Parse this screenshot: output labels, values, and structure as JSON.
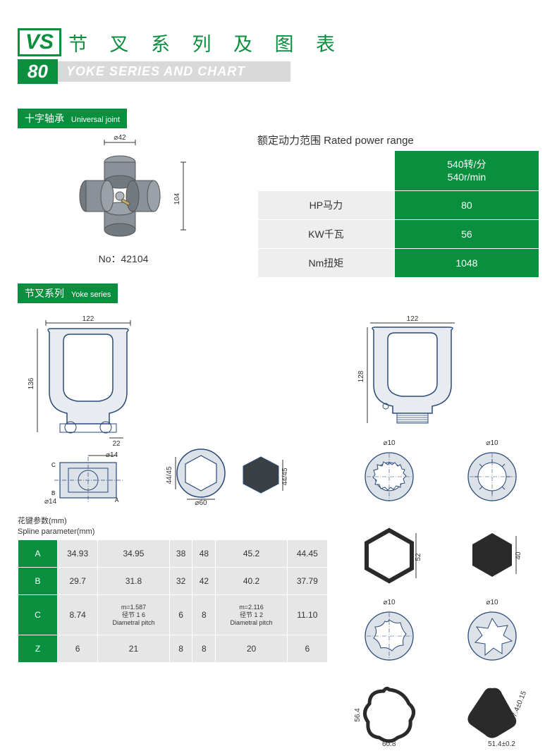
{
  "header": {
    "vs_text": "VS",
    "num_text": "80",
    "title_cn": "节 叉 系 列 及 图 表",
    "subtitle_en": "YOKE SERIES AND CHART"
  },
  "section1": {
    "label_cn": "十字轴承",
    "label_en": "Universal joint",
    "diagram": {
      "diam": "⌀42",
      "height": "104",
      "no": "No：42104"
    },
    "power_title": "额定动力范围  Rated power range",
    "power_header": "540转/分\n540r/min",
    "rows": [
      {
        "label": "HP马力",
        "value": "80"
      },
      {
        "label": "KW千瓦",
        "value": "56"
      },
      {
        "label": "Nm扭矩",
        "value": "1048"
      }
    ]
  },
  "section2": {
    "label_cn": "节叉系列",
    "label_en": "Yoke series",
    "left_yoke": {
      "w": "122",
      "h": "136",
      "base_w": "22",
      "shaft_d": "⌀14",
      "body_d": "⌀14"
    },
    "hex_profile": {
      "outer": "⌀60",
      "flat": "44/45"
    },
    "right_yoke": {
      "w": "122",
      "h": "128"
    },
    "spline_caption_cn": "花键参数(mm)",
    "spline_caption_en": "Spline parameter(mm)",
    "spline_table": {
      "row_labels": [
        "A",
        "B",
        "C",
        "Z"
      ],
      "rows": [
        [
          "34.93",
          "34.95",
          "38",
          "48",
          "45.2",
          "44.45"
        ],
        [
          "29.7",
          "31.8",
          "32",
          "42",
          "40.2",
          "37.79"
        ],
        [
          "8.74",
          {
            "main": "m=1.587",
            "sub1": "径节 1 6",
            "sub2": "Diametral pitch"
          },
          "6",
          "8",
          {
            "main": "m=2.116",
            "sub1": "径节 1 2",
            "sub2": "Diametral pitch"
          },
          "11.10"
        ],
        [
          "6",
          "21",
          "8",
          "8",
          "20",
          "6"
        ]
      ]
    },
    "profiles": {
      "d_outer": "⌀10",
      "hex_inner": "52",
      "hex_solid": "40",
      "lemon_w": "60.8",
      "lemon_h": "56.4",
      "tri_a": "51.4±0.2",
      "tri_b": "47.4±0.15"
    }
  },
  "colors": {
    "brand_green": "#0a8f3f",
    "light_gray": "#e6e6e6",
    "mid_gray": "#d9d9d9",
    "stroke": "#2a4a7a"
  }
}
